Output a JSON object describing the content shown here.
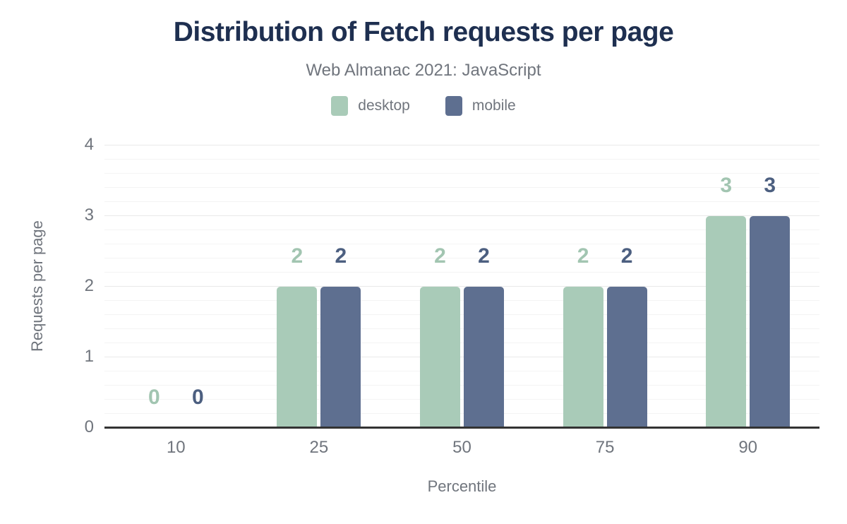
{
  "title": "Distribution of Fetch requests per page",
  "subtitle": "Web Almanac 2021: JavaScript",
  "legend": {
    "items": [
      {
        "label": "desktop",
        "color": "#a9cbb8"
      },
      {
        "label": "mobile",
        "color": "#5e6f90"
      }
    ]
  },
  "axes": {
    "x_title": "Percentile",
    "y_title": "Requests per page"
  },
  "chart_data": {
    "type": "bar",
    "categories": [
      "10",
      "25",
      "50",
      "75",
      "90"
    ],
    "series": [
      {
        "name": "desktop",
        "values": [
          0,
          2,
          2,
          2,
          3
        ],
        "color": "#a9cbb8",
        "label_color": "#a2c5b1"
      },
      {
        "name": "mobile",
        "values": [
          0,
          2,
          2,
          2,
          3
        ],
        "color": "#5e6f90",
        "label_color": "#4c5f80"
      }
    ],
    "title": "Distribution of Fetch requests per page",
    "subtitle": "Web Almanac 2021: JavaScript",
    "xlabel": "Percentile",
    "ylabel": "Requests per page",
    "ylim": [
      0,
      4
    ],
    "yticks": [
      0,
      1,
      2,
      3,
      4
    ],
    "grid": {
      "axis": "y",
      "minor_step": 0.2,
      "major_step": 1
    },
    "legend_position": "top",
    "data_labels": "above bars, colored per series"
  },
  "colors": {
    "title_text": "#1e2f50",
    "muted_text": "#70757d",
    "axis_line": "#333333",
    "grid_major": "#e9e9e9",
    "grid_minor": "#f4f4f4",
    "background": "#ffffff"
  }
}
